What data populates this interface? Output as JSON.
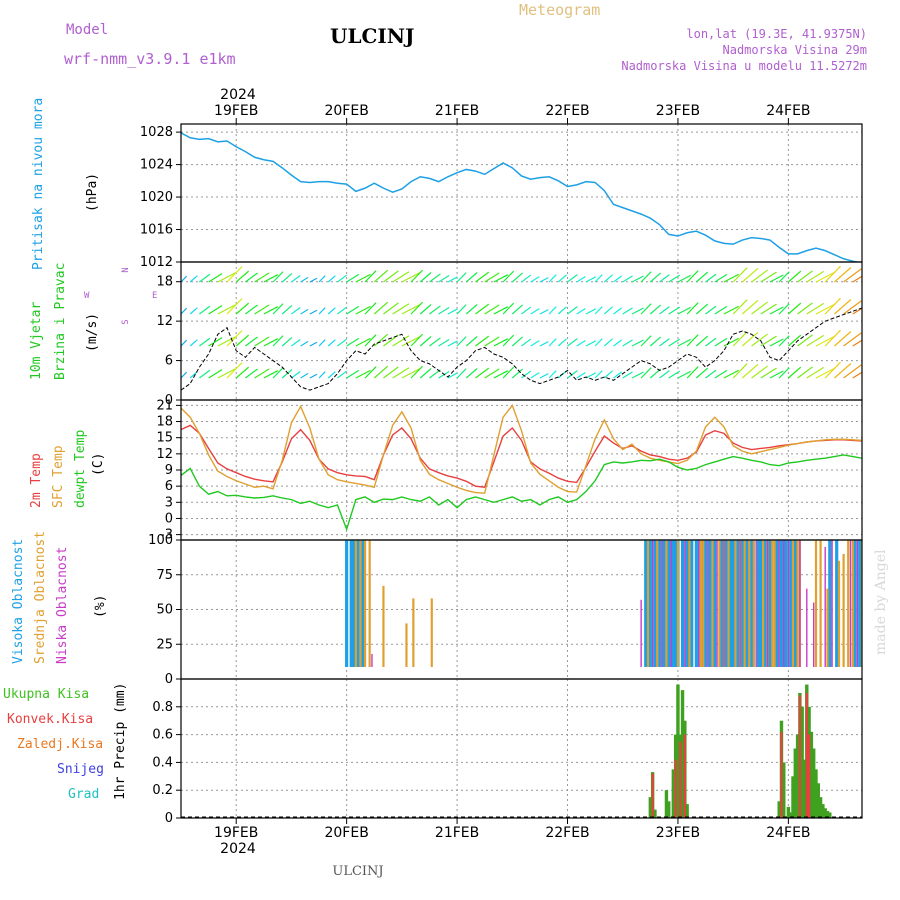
{
  "header": {
    "model_label": "Model",
    "model_name": "wrf-nmm_v3.9.1 e1km",
    "station": "ULCINJ",
    "product": "Meteogram",
    "lonlat": "lon,lat (19.3E, 41.9375N)",
    "elevation": "Nadmorska Visina 29m",
    "model_elevation": "Nadmorska Visina u modelu 11.5272m",
    "year": "2024",
    "footer_station": "ULCINJ",
    "watermark": "made by Angel"
  },
  "colors": {
    "pressure": "#1ea0e6",
    "temp2m": "#e84040",
    "sfc_temp": "#e0a030",
    "dewpoint": "#20c820",
    "cloud_high": "#1ea0e6",
    "cloud_mid": "#e0a030",
    "cloud_low": "#c83cc8",
    "precip_total": "#40a020",
    "precip_conv": "#e84040",
    "precip_stratiform": "#e87820",
    "snow": "#4040e0",
    "hail": "#20c0c0",
    "frame": "#000000",
    "grid": "#999999"
  },
  "chart_data": [
    {
      "type": "line",
      "panel": "pressure",
      "ylabel": "Pritisak na nivou mora",
      "unit": "(hPa)",
      "ylim": [
        1012,
        1029
      ],
      "yticks": [
        1012,
        1016,
        1020,
        1024,
        1028
      ],
      "x_unit": "hours since 18 Feb 2024 12:00 UTC",
      "x_ticks": [
        {
          "label": "19FEB",
          "x": 12
        },
        {
          "label": "20FEB",
          "x": 36
        },
        {
          "label": "21FEB",
          "x": 60
        },
        {
          "label": "22FEB",
          "x": 84
        },
        {
          "label": "23FEB",
          "x": 108
        },
        {
          "label": "24FEB",
          "x": 132
        }
      ],
      "xlim": [
        0,
        148
      ],
      "x": [
        0,
        2,
        4,
        6,
        8,
        10,
        12,
        14,
        16,
        18,
        20,
        22,
        24,
        26,
        28,
        30,
        32,
        34,
        36,
        38,
        40,
        42,
        44,
        46,
        48,
        50,
        52,
        54,
        56,
        58,
        60,
        62,
        64,
        66,
        68,
        70,
        72,
        74,
        76,
        78,
        80,
        82,
        84,
        86,
        88,
        90,
        92,
        94,
        96,
        98,
        100,
        102,
        104,
        106,
        108,
        110,
        112,
        114,
        116,
        118,
        120,
        122,
        124,
        126,
        128,
        130,
        132,
        134,
        136,
        138,
        140,
        142,
        144,
        146,
        148
      ],
      "values": [
        1027.9,
        1027.3,
        1027.1,
        1027.2,
        1026.8,
        1026.9,
        1026.2,
        1025.6,
        1024.9,
        1024.6,
        1024.4,
        1023.6,
        1022.7,
        1021.9,
        1021.8,
        1021.9,
        1021.9,
        1021.7,
        1021.6,
        1020.7,
        1021.1,
        1021.7,
        1021.1,
        1020.6,
        1021.0,
        1021.9,
        1022.5,
        1022.3,
        1021.9,
        1022.5,
        1023.0,
        1023.4,
        1023.2,
        1022.8,
        1023.5,
        1024.2,
        1023.6,
        1022.6,
        1022.2,
        1022.4,
        1022.5,
        1022.0,
        1021.3,
        1021.5,
        1021.9,
        1021.8,
        1020.8,
        1019.1,
        1018.7,
        1018.3,
        1017.9,
        1017.4,
        1016.6,
        1015.4,
        1015.2,
        1015.6,
        1015.8,
        1015.3,
        1014.6,
        1014.3,
        1014.2,
        1014.7,
        1015.0,
        1014.9,
        1014.7,
        1013.8,
        1013.0,
        1013.0,
        1013.4,
        1013.7,
        1013.4,
        1012.9,
        1012.4,
        1012.1,
        1011.9
      ]
    },
    {
      "type": "line",
      "panel": "wind",
      "ylabel": "10m Vjetar",
      "ylabel2": "Brzina i Pravac",
      "unit": "(m/s)",
      "ylim": [
        0,
        21
      ],
      "yticks": [
        0,
        6,
        12,
        18
      ],
      "compass": {
        "n": "N",
        "s": "S",
        "e": "E",
        "w": "W"
      },
      "x": [
        0,
        2,
        4,
        6,
        8,
        10,
        12,
        14,
        16,
        18,
        20,
        22,
        24,
        26,
        28,
        30,
        32,
        34,
        36,
        38,
        40,
        42,
        44,
        46,
        48,
        50,
        52,
        54,
        56,
        58,
        60,
        62,
        64,
        66,
        68,
        70,
        72,
        74,
        76,
        78,
        80,
        82,
        84,
        86,
        88,
        90,
        92,
        94,
        96,
        98,
        100,
        102,
        104,
        106,
        108,
        110,
        112,
        114,
        116,
        118,
        120,
        122,
        124,
        126,
        128,
        130,
        132,
        134,
        136,
        138,
        140,
        142,
        144,
        146,
        148
      ],
      "values": [
        1.5,
        2.5,
        5.0,
        7.0,
        10.0,
        11.0,
        7.5,
        6.5,
        8.0,
        7.0,
        6.0,
        5.0,
        3.5,
        2.0,
        1.5,
        2.0,
        2.5,
        4.0,
        6.0,
        7.5,
        7.0,
        8.5,
        9.0,
        9.5,
        10.0,
        7.5,
        6.0,
        5.5,
        4.5,
        3.5,
        5.0,
        6.0,
        7.5,
        8.0,
        7.0,
        6.5,
        5.5,
        4.0,
        3.0,
        2.5,
        3.0,
        3.5,
        4.5,
        3.0,
        3.5,
        3.0,
        3.5,
        3.0,
        4.0,
        5.0,
        6.0,
        5.5,
        4.5,
        5.0,
        6.0,
        7.0,
        6.5,
        5.0,
        6.0,
        7.5,
        10.0,
        10.5,
        10.0,
        9.0,
        6.5,
        6.0,
        7.5,
        9.0,
        10.0,
        11.0,
        12.0,
        12.5,
        13.0,
        13.5,
        14.0
      ],
      "gusts_shown": true,
      "barbs_shown": true
    },
    {
      "type": "line",
      "panel": "temperature",
      "ylabel_series": [
        "2m Temp",
        "SFC Temp",
        "dewpt Temp"
      ],
      "unit": "(C)",
      "ylim": [
        -4,
        22
      ],
      "yticks": [
        -3,
        0,
        3,
        6,
        9,
        12,
        15,
        18,
        21
      ],
      "x": [
        0,
        2,
        4,
        6,
        8,
        10,
        12,
        14,
        16,
        18,
        20,
        22,
        24,
        26,
        28,
        30,
        32,
        34,
        36,
        38,
        40,
        42,
        44,
        46,
        48,
        50,
        52,
        54,
        56,
        58,
        60,
        62,
        64,
        66,
        68,
        70,
        72,
        74,
        76,
        78,
        80,
        82,
        84,
        86,
        88,
        90,
        92,
        94,
        96,
        98,
        100,
        102,
        104,
        106,
        108,
        110,
        112,
        114,
        116,
        118,
        120,
        122,
        124,
        126,
        128,
        130,
        132,
        134,
        136,
        138,
        140,
        142,
        144,
        146,
        148
      ],
      "series": [
        {
          "name": "2m Temp",
          "values": [
            16.5,
            17.3,
            15.8,
            13.0,
            10.3,
            9.2,
            8.5,
            7.8,
            7.3,
            7.0,
            6.8,
            10.5,
            14.8,
            16.5,
            14.5,
            11.0,
            9.2,
            8.5,
            8.1,
            7.9,
            7.8,
            7.2,
            11.8,
            15.5,
            16.8,
            14.8,
            11.2,
            9.2,
            8.5,
            7.9,
            7.5,
            6.9,
            6.0,
            5.8,
            10.5,
            15.3,
            16.8,
            14.5,
            10.5,
            9.2,
            8.4,
            7.5,
            6.9,
            6.7,
            9.5,
            12.5,
            15.3,
            14.0,
            13.0,
            13.5,
            12.5,
            11.8,
            11.5,
            11.0,
            10.8,
            11.2,
            12.3,
            15.5,
            16.3,
            15.8,
            14.0,
            13.2,
            12.8,
            13.0,
            13.2,
            13.5,
            13.7,
            13.9,
            14.2,
            14.4,
            14.5,
            14.6,
            14.6,
            14.5,
            14.4
          ]
        },
        {
          "name": "SFC Temp",
          "values": [
            20.5,
            18.8,
            15.8,
            11.8,
            8.8,
            7.8,
            7.0,
            6.4,
            5.8,
            6.0,
            5.5,
            10.8,
            17.8,
            20.8,
            16.8,
            11.0,
            8.1,
            7.2,
            6.8,
            6.5,
            6.2,
            5.8,
            11.8,
            17.3,
            19.8,
            16.8,
            10.8,
            8.2,
            7.2,
            6.5,
            5.8,
            5.2,
            4.8,
            4.7,
            11.8,
            18.8,
            21.0,
            16.3,
            10.3,
            8.2,
            7.0,
            5.8,
            5.0,
            4.9,
            9.8,
            14.8,
            18.3,
            14.8,
            12.8,
            13.8,
            12.0,
            11.2,
            10.8,
            10.5,
            10.2,
            10.8,
            12.5,
            17.0,
            18.8,
            17.0,
            13.5,
            12.5,
            12.0,
            12.4,
            12.8,
            13.2,
            13.6,
            13.9,
            14.2,
            14.4,
            14.6,
            14.7,
            14.7,
            14.6,
            14.5
          ]
        },
        {
          "name": "dewpt Temp",
          "values": [
            8.0,
            9.3,
            6.0,
            4.5,
            5.0,
            4.2,
            4.3,
            4.0,
            3.8,
            3.9,
            4.2,
            3.8,
            3.5,
            2.8,
            3.2,
            2.5,
            2.0,
            2.5,
            -2.0,
            3.5,
            4.0,
            3.0,
            3.6,
            3.5,
            4.0,
            3.5,
            3.2,
            4.0,
            2.5,
            3.5,
            2.0,
            3.5,
            4.0,
            3.5,
            3.0,
            3.5,
            4.0,
            3.2,
            3.5,
            2.5,
            3.5,
            4.0,
            3.0,
            3.5,
            5.0,
            7.0,
            10.0,
            10.5,
            10.3,
            10.5,
            10.8,
            10.7,
            11.0,
            10.5,
            9.5,
            9.0,
            9.3,
            10.0,
            10.5,
            11.0,
            11.5,
            11.2,
            10.8,
            10.5,
            10.0,
            9.8,
            10.3,
            10.5,
            10.8,
            11.0,
            11.2,
            11.5,
            11.8,
            11.5,
            11.2
          ]
        }
      ]
    },
    {
      "type": "bar",
      "panel": "clouds",
      "ylabel_series": [
        "Visoka Oblacnost",
        "Srednja Oblacnost",
        "Niska Oblacnost"
      ],
      "unit": "(%)",
      "ylim": [
        0,
        100
      ],
      "yticks": [
        0,
        25,
        50,
        75,
        100
      ],
      "series": [
        {
          "name": "Visoka Oblacnost",
          "x": [
            36.0,
            37.0,
            37.5,
            38.5,
            39.5,
            101.0,
            101.5,
            102.0,
            103.0,
            104.0,
            105.0,
            106.0,
            106.5,
            107.0,
            107.5,
            108.0,
            109.0,
            110.0,
            111.0,
            112.0,
            113.0,
            114.0,
            115.0,
            116.0,
            117.5,
            118.5,
            119.5,
            120.0,
            121.0,
            122.0,
            123.0,
            124.0,
            125.5,
            126.0,
            127.0,
            128.0,
            129.5,
            130.5,
            131.0,
            131.5,
            132.5,
            133.5,
            141.0,
            142.5,
            146.5,
            147.5
          ],
          "values": [
            100,
            100,
            100,
            100,
            100,
            100,
            100,
            100,
            100,
            100,
            100,
            100,
            100,
            100,
            100,
            100,
            100,
            100,
            100,
            100,
            100,
            100,
            100,
            100,
            100,
            100,
            100,
            100,
            100,
            100,
            100,
            100,
            100,
            100,
            100,
            100,
            100,
            100,
            100,
            100,
            100,
            100,
            100,
            100,
            100,
            100
          ]
        },
        {
          "name": "Srednja Oblacnost",
          "x": [
            38.0,
            39.0,
            40.0,
            41.0,
            44.0,
            49.0,
            50.5,
            54.5,
            101.5,
            103.5,
            105.5,
            108.0,
            110.5,
            113.0,
            113.5,
            115.5,
            117.0,
            118.0,
            119.0,
            120.5,
            121.5,
            122.5,
            123.5,
            124.5,
            126.5,
            127.5,
            128.5,
            129.0,
            133.0,
            134.0,
            134.5,
            138.0,
            139.0,
            140.5,
            143.0,
            144.0,
            145.0,
            146.0,
            148.0
          ],
          "values": [
            100,
            100,
            100,
            100,
            67,
            40,
            58,
            58,
            100,
            100,
            100,
            100,
            100,
            100,
            100,
            100,
            100,
            100,
            100,
            100,
            100,
            100,
            100,
            100,
            100,
            100,
            100,
            100,
            100,
            100,
            100,
            100,
            100,
            65,
            85,
            90,
            100,
            100,
            100
          ]
        },
        {
          "name": "Niska Oblacnost",
          "x": [
            13.0,
            14.0,
            41.5,
            100.0,
            102.5,
            104.5,
            106.5,
            109.5,
            112.5,
            114.5,
            116.5,
            118.0,
            121.5,
            125.0,
            127.5,
            130.0,
            131.0,
            132.0,
            134.5,
            136.0,
            137.5,
            140.0,
            141.5,
            145.5,
            147.0
          ],
          "values": [
            5,
            5,
            18,
            57,
            100,
            100,
            100,
            100,
            100,
            100,
            100,
            100,
            100,
            100,
            100,
            100,
            100,
            100,
            100,
            65,
            55,
            95,
            100,
            100,
            100
          ]
        }
      ]
    },
    {
      "type": "bar",
      "panel": "precipitation",
      "ylabel": "1hr Precip (mm)",
      "legend": [
        "Ukupna Kisa",
        "Konvek.Kisa",
        "Zaledj.Kisa",
        "Snijeg",
        "Grad"
      ],
      "ylim": [
        0,
        1.0
      ],
      "yticks": [
        0,
        0.2,
        0.4,
        0.6,
        0.8
      ],
      "series": [
        {
          "name": "Ukupna Kisa",
          "x": [
            102.0,
            102.5,
            103.0,
            105.5,
            106.0,
            107.0,
            107.5,
            108.0,
            108.5,
            109.0,
            109.5,
            110.0,
            130.0,
            130.5,
            131.0,
            132.0,
            132.5,
            133.0,
            133.5,
            134.0,
            134.5,
            135.0,
            135.5,
            136.0,
            136.5,
            137.0,
            137.5,
            138.0,
            138.5,
            139.0,
            139.5,
            140.0,
            140.5,
            141.0
          ],
          "values": [
            0.15,
            0.33,
            0.06,
            0.2,
            0.12,
            0.35,
            0.6,
            0.96,
            0.6,
            0.92,
            0.7,
            0.1,
            0.12,
            0.7,
            0.4,
            0.08,
            0.04,
            0.3,
            0.5,
            0.6,
            0.9,
            0.8,
            0.42,
            0.96,
            0.8,
            0.62,
            0.5,
            0.35,
            0.25,
            0.15,
            0.1,
            0.07,
            0.05,
            0.04
          ]
        },
        {
          "name": "Konvek.Kisa",
          "x": [
            102.5,
            107.5,
            108.5,
            109.5,
            130.5,
            134.5,
            136.0,
            136.5
          ],
          "values": [
            0.32,
            0.42,
            0.55,
            0.6,
            0.62,
            0.88,
            0.9,
            0.6
          ]
        }
      ]
    }
  ]
}
